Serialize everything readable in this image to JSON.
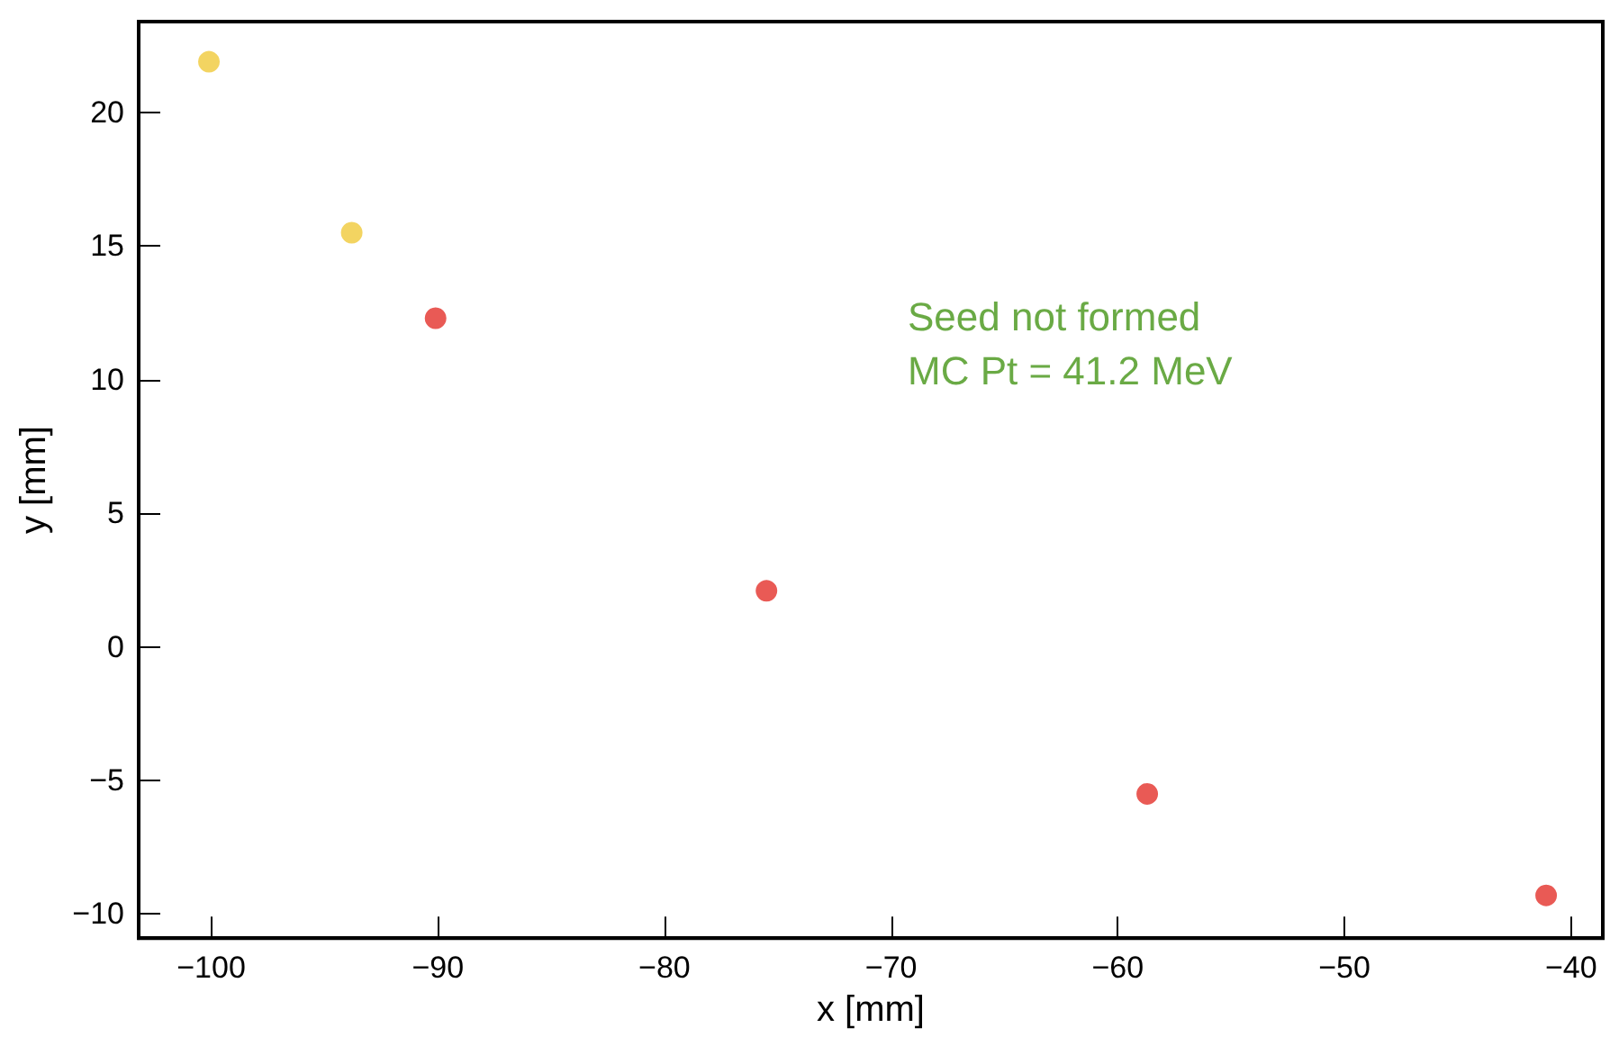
{
  "chart_data": {
    "type": "scatter",
    "xlabel": "x [mm]",
    "ylabel": "y [mm]",
    "annotations": [
      "Seed not formed",
      "MC Pt = 41.2 MeV"
    ],
    "series": [
      {
        "color": "#f0c93a",
        "x": [
          -100.1,
          -93.8
        ],
        "values": [
          21.9,
          15.5
        ]
      },
      {
        "color": "#e3312a",
        "x": [
          -90.1,
          -75.5,
          -58.7,
          -41.1
        ],
        "values": [
          12.3,
          2.1,
          -5.5,
          -9.3
        ]
      }
    ],
    "xlim": [
      -103.2,
      -38.6
    ],
    "xticks": [
      -100,
      -90,
      -80,
      -70,
      -60,
      -50,
      -40
    ],
    "ylim": [
      -10.9,
      23.4
    ],
    "yticks": [
      -10,
      -5,
      0,
      5,
      10,
      15,
      20
    ],
    "marker": "circle"
  }
}
